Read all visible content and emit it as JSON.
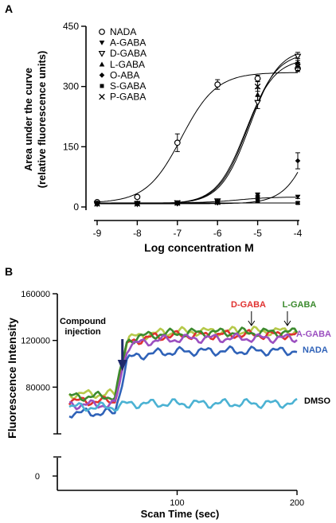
{
  "panels": {
    "a": "A",
    "b": "B"
  },
  "chart_data": [
    {
      "type": "scatter",
      "title": "",
      "xlabel": "Log concentration  M",
      "ylabel_line1": "Area under the curve",
      "ylabel_line2": "(relative fluorescence units)",
      "xlim": [
        -9,
        -4
      ],
      "ylim": [
        0,
        450
      ],
      "xticks": [
        "-9",
        "-8",
        "-7",
        "-6",
        "-5",
        "-4"
      ],
      "yticks": [
        "0",
        "150",
        "300",
        "450"
      ],
      "x": [
        -9,
        -8,
        -7,
        -6,
        -5,
        -4
      ],
      "legend_position": "top-left",
      "series": [
        {
          "name": "NADA",
          "marker": "open-circle",
          "values": [
            12,
            25,
            160,
            305,
            320,
            345
          ],
          "errors": [
            3,
            4,
            22,
            12,
            8,
            8
          ],
          "fit": {
            "bottom": 10,
            "top": 335,
            "logec50": -6.9,
            "hill": 1.0
          }
        },
        {
          "name": "A-GABA",
          "marker": "filled-triangle-down",
          "values": [
            10,
            10,
            10,
            12,
            30,
            25
          ],
          "errors": [
            2,
            2,
            3,
            3,
            5,
            4
          ],
          "fit": {
            "bottom": 10,
            "top": 25,
            "logec50": -5.5,
            "hill": 1.0
          }
        },
        {
          "name": "D-GABA",
          "marker": "open-triangle-down",
          "values": [
            8,
            8,
            10,
            15,
            260,
            375
          ],
          "errors": [
            2,
            2,
            3,
            3,
            15,
            10
          ],
          "fit": {
            "bottom": 8,
            "top": 395,
            "logec50": -5.2,
            "hill": 1.2
          }
        },
        {
          "name": "L-GABA",
          "marker": "filled-triangle-up",
          "values": [
            8,
            8,
            10,
            15,
            280,
            360
          ],
          "errors": [
            2,
            2,
            3,
            3,
            15,
            10
          ],
          "fit": {
            "bottom": 8,
            "top": 385,
            "logec50": -5.25,
            "hill": 1.2
          }
        },
        {
          "name": "O-ABA",
          "marker": "filled-diamond",
          "values": [
            10,
            10,
            8,
            10,
            25,
            115
          ],
          "errors": [
            2,
            2,
            2,
            2,
            4,
            20
          ],
          "fit": {
            "bottom": 8,
            "top": 400,
            "logec50": -3.5,
            "hill": 1.2
          }
        },
        {
          "name": "S-GABA",
          "marker": "filled-square",
          "values": [
            8,
            8,
            10,
            12,
            15,
            10
          ],
          "errors": [
            2,
            2,
            2,
            2,
            3,
            3
          ],
          "fit": {
            "bottom": 10,
            "top": 10,
            "logec50": -5,
            "hill": 1
          }
        },
        {
          "name": "P-GABA",
          "marker": "x-cross",
          "values": [
            8,
            8,
            10,
            12,
            300,
            350
          ],
          "errors": [
            2,
            2,
            3,
            3,
            12,
            10
          ],
          "fit": {
            "bottom": 8,
            "top": 370,
            "logec50": -5.3,
            "hill": 1.2
          }
        }
      ]
    },
    {
      "type": "line",
      "title": "",
      "xlabel": "Scan Time (sec)",
      "ylabel": "Fluorescence Intensity",
      "xlim": [
        0,
        200
      ],
      "ylim": [
        40000,
        160000
      ],
      "xticks": [
        "100",
        "200"
      ],
      "yticks": [
        "80000",
        "120000",
        "160000"
      ],
      "ybreak_tick": "0",
      "annotation": {
        "line1": "Compound",
        "line2": "injection",
        "x": 45
      },
      "series": [
        {
          "name": "D-GABA",
          "color": "#e0312f",
          "baseline": 68000,
          "plateau": 125000,
          "rise_x": 55,
          "label_arrow": true,
          "arrow_x": 162
        },
        {
          "name": "L-GABA",
          "color": "#3c8a2e",
          "baseline": 72000,
          "plateau": 127000,
          "rise_x": 55,
          "label_arrow": true,
          "arrow_x": 192
        },
        {
          "name": "A-GABA",
          "color": "#9b4fc0",
          "baseline": 65000,
          "plateau": 122000,
          "rise_x": 55
        },
        {
          "name": "NADA",
          "color": "#2f62b8",
          "baseline": 58000,
          "plateau": 111000,
          "rise_x": 55
        },
        {
          "name": "DMSO",
          "color": "#4bb2d3",
          "baseline": 63000,
          "plateau": 66000,
          "rise_x": 55,
          "label_color": "#000000"
        }
      ],
      "extra_lines": [
        {
          "color": "#b6c94a",
          "baseline": 74000,
          "plateau": 128000
        }
      ]
    }
  ]
}
